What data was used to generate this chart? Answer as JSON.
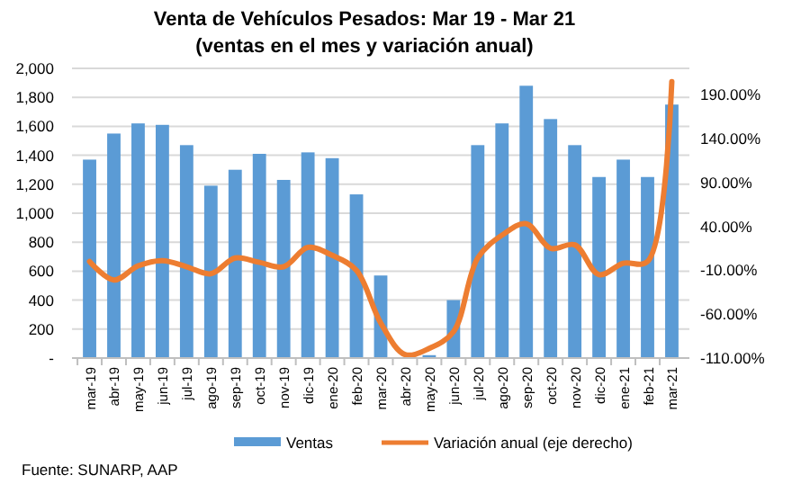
{
  "chart_data": {
    "type": "bar",
    "title": "Venta de Vehículos Pesados: Mar 19 - Mar 21",
    "subtitle": "(ventas en el mes y variación  anual)",
    "categories": [
      "mar-19",
      "abr-19",
      "may-19",
      "jun-19",
      "jul-19",
      "ago-19",
      "sep-19",
      "oct-19",
      "nov-19",
      "dic-19",
      "ene-20",
      "feb-20",
      "mar-20",
      "abr-20",
      "may-20",
      "jun-20",
      "jul-20",
      "ago-20",
      "sep-20",
      "oct-20",
      "nov-20",
      "dic-20",
      "ene-21",
      "feb-21",
      "mar-21"
    ],
    "series": [
      {
        "name": "Ventas",
        "color": "#5b9bd5",
        "values": [
          1370,
          1550,
          1620,
          1610,
          1470,
          1190,
          1300,
          1410,
          1230,
          1420,
          1380,
          1130,
          570,
          null,
          20,
          400,
          1470,
          1620,
          1880,
          1650,
          1470,
          1250,
          1370,
          1250,
          1750
        ]
      },
      {
        "name": "Variación anual (eje derecho)",
        "type": "line",
        "axis": "y2",
        "color": "#ed7d31",
        "values": [
          0,
          -21,
          -5,
          1,
          -6,
          -14,
          4,
          -1,
          -6,
          16,
          7,
          -10,
          -70,
          -106,
          -99,
          -80,
          4,
          30,
          43,
          15,
          19,
          -15,
          -2,
          0,
          205
        ]
      }
    ],
    "ylim": [
      0,
      2000
    ],
    "yticks": [
      {
        "value": 0,
        "label": "-"
      },
      {
        "value": 200,
        "label": "200"
      },
      {
        "value": 400,
        "label": "400"
      },
      {
        "value": 600,
        "label": "600"
      },
      {
        "value": 800,
        "label": "800"
      },
      {
        "value": 1000,
        "label": "1,000"
      },
      {
        "value": 1200,
        "label": "1,200"
      },
      {
        "value": 1400,
        "label": "1,400"
      },
      {
        "value": 1600,
        "label": "1,600"
      },
      {
        "value": 1800,
        "label": "1,800"
      },
      {
        "value": 2000,
        "label": "2,000"
      }
    ],
    "y2lim": [
      -110,
      220
    ],
    "y2ticks": [
      {
        "value": -110,
        "label": "-110.00%"
      },
      {
        "value": -60,
        "label": "-60.00%"
      },
      {
        "value": -10,
        "label": "-10.00%"
      },
      {
        "value": 40,
        "label": "40.00%"
      },
      {
        "value": 90,
        "label": "90.00%"
      },
      {
        "value": 140,
        "label": "140.00%"
      },
      {
        "value": 190,
        "label": "190.00%"
      }
    ],
    "grid": "y",
    "legend": "bottom",
    "annotations": [
      "Fuente: SUNARP, AAP"
    ]
  }
}
